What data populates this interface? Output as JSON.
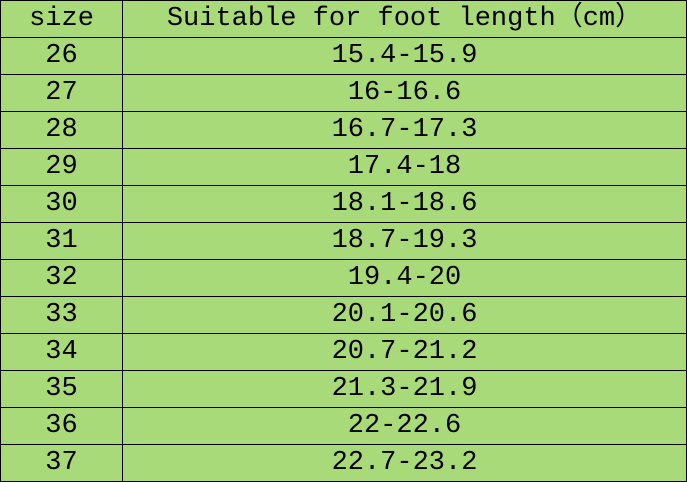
{
  "table": {
    "header": [
      "size",
      "Suitable for foot length（cm）"
    ],
    "rows": [
      [
        "26",
        "15.4-15.9"
      ],
      [
        "27",
        "16-16.6"
      ],
      [
        "28",
        "16.7-17.3"
      ],
      [
        "29",
        "17.4-18"
      ],
      [
        "30",
        "18.1-18.6"
      ],
      [
        "31",
        "18.7-19.3"
      ],
      [
        "32",
        "19.4-20"
      ],
      [
        "33",
        "20.1-20.6"
      ],
      [
        "34",
        "20.7-21.2"
      ],
      [
        "35",
        "21.3-21.9"
      ],
      [
        "36",
        "22-22.6"
      ],
      [
        "37",
        "22.7-23.2"
      ]
    ]
  }
}
